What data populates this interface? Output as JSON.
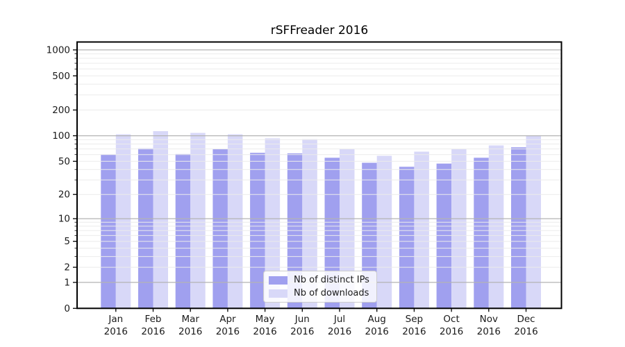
{
  "chart_data": {
    "type": "bar",
    "title": "rSFFreader 2016",
    "categories": [
      "Jan",
      "Feb",
      "Mar",
      "Apr",
      "May",
      "Jun",
      "Jul",
      "Aug",
      "Sep",
      "Oct",
      "Nov",
      "Dec"
    ],
    "x_tick_second_line": "2016",
    "series": [
      {
        "name": "Nb of distinct IPs",
        "color": "#a0a0ef",
        "values": [
          60,
          71,
          61,
          70,
          63,
          62,
          55,
          48,
          43,
          47,
          55,
          73
        ]
      },
      {
        "name": "Nb of downloads",
        "color": "#d8d8f8",
        "values": [
          104,
          113,
          108,
          104,
          93,
          91,
          70,
          58,
          65,
          70,
          77,
          100
        ]
      }
    ],
    "xlabel": "",
    "ylabel": "",
    "yscale": "log1p",
    "ylim": [
      0,
      1250
    ],
    "yticks": [
      0,
      1,
      2,
      5,
      10,
      20,
      50,
      100,
      200,
      500,
      1000
    ],
    "major_gridlines": [
      1,
      10,
      100,
      1000
    ],
    "minor_gridlines": [
      2,
      3,
      4,
      5,
      6,
      7,
      8,
      9,
      20,
      30,
      40,
      50,
      60,
      70,
      80,
      90,
      200,
      300,
      400,
      500,
      600,
      700,
      800,
      900
    ],
    "grid": true,
    "legend": {
      "position": "lower center",
      "items": [
        "Nb of distinct IPs",
        "Nb of downloads"
      ]
    }
  },
  "colors": {
    "background": "#ffffff",
    "bar_distinct_ips": "#a0a0ef",
    "bar_downloads": "#d8d8f8",
    "major_grid": "#b3b3b3",
    "minor_grid": "#ebebeb",
    "axis": "#000000",
    "text": "#1a1a1a",
    "legend_border": "#cccccc"
  }
}
